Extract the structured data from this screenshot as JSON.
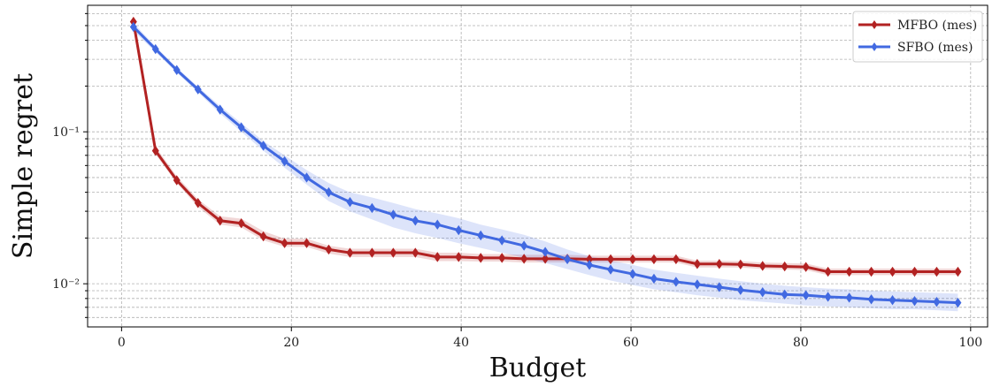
{
  "chart_data": {
    "type": "line",
    "title": "",
    "xlabel": "Budget",
    "ylabel": "Simple regret",
    "xlim": [
      -4,
      102
    ],
    "ylim": [
      0.0052,
      0.68
    ],
    "yscale": "log",
    "grid": true,
    "legend_position": "top-right",
    "x_ticks": [
      0,
      20,
      40,
      60,
      80,
      100
    ],
    "x_tick_labels": [
      "0",
      "20",
      "40",
      "60",
      "80",
      "100"
    ],
    "y_major_ticks": [
      0.1,
      0.01
    ],
    "y_major_tick_labels": [
      "10⁻¹",
      "10⁻²"
    ],
    "x": [
      1.4,
      4.0,
      6.5,
      9.0,
      11.6,
      14.1,
      16.7,
      19.2,
      21.8,
      24.4,
      26.9,
      29.5,
      32.0,
      34.6,
      37.2,
      39.7,
      42.3,
      44.8,
      47.4,
      49.9,
      52.5,
      55.1,
      57.6,
      60.2,
      62.7,
      65.3,
      67.8,
      70.4,
      72.9,
      75.5,
      78.1,
      80.6,
      83.2,
      85.7,
      88.3,
      90.8,
      93.4,
      96.0,
      98.5
    ],
    "series": [
      {
        "name": "MFBO (mes)",
        "color": "#b22222",
        "values": [
          0.53,
          0.075,
          0.048,
          0.034,
          0.026,
          0.025,
          0.0205,
          0.0185,
          0.0185,
          0.0168,
          0.016,
          0.016,
          0.016,
          0.016,
          0.015,
          0.015,
          0.0148,
          0.0148,
          0.0146,
          0.0146,
          0.0146,
          0.0145,
          0.0145,
          0.0145,
          0.0145,
          0.0145,
          0.0135,
          0.0135,
          0.0134,
          0.0131,
          0.013,
          0.0129,
          0.012,
          0.012,
          0.012,
          0.012,
          0.012,
          0.012,
          0.012
        ],
        "band_lower": [
          0.5,
          0.071,
          0.046,
          0.032,
          0.0245,
          0.0235,
          0.0193,
          0.0175,
          0.0175,
          0.0158,
          0.015,
          0.015,
          0.015,
          0.015,
          0.0141,
          0.0141,
          0.014,
          0.014,
          0.0138,
          0.0138,
          0.0138,
          0.0138,
          0.0138,
          0.0138,
          0.0138,
          0.0138,
          0.0128,
          0.0128,
          0.0128,
          0.0125,
          0.0124,
          0.0123,
          0.0114,
          0.0114,
          0.0114,
          0.0114,
          0.0114,
          0.0114,
          0.0114
        ],
        "band_upper": [
          0.56,
          0.08,
          0.051,
          0.036,
          0.0278,
          0.0268,
          0.0222,
          0.0198,
          0.0198,
          0.0178,
          0.017,
          0.017,
          0.017,
          0.017,
          0.016,
          0.016,
          0.0157,
          0.0157,
          0.0155,
          0.0155,
          0.0155,
          0.0153,
          0.0153,
          0.0153,
          0.0153,
          0.0153,
          0.0142,
          0.0142,
          0.0141,
          0.0138,
          0.0137,
          0.0136,
          0.0126,
          0.0126,
          0.0126,
          0.0126,
          0.0126,
          0.0126,
          0.0126
        ]
      },
      {
        "name": "SFBO (mes)",
        "color": "#4169e1",
        "values": [
          0.49,
          0.35,
          0.255,
          0.19,
          0.14,
          0.107,
          0.081,
          0.064,
          0.05,
          0.04,
          0.0345,
          0.0315,
          0.0285,
          0.026,
          0.0245,
          0.0225,
          0.0208,
          0.0193,
          0.0178,
          0.0162,
          0.0145,
          0.0133,
          0.0124,
          0.0116,
          0.0108,
          0.0103,
          0.0099,
          0.0095,
          0.0091,
          0.0088,
          0.0085,
          0.0084,
          0.0082,
          0.0081,
          0.0079,
          0.0078,
          0.0077,
          0.0076,
          0.0075
        ],
        "band_lower": [
          0.46,
          0.335,
          0.245,
          0.182,
          0.132,
          0.1,
          0.075,
          0.058,
          0.045,
          0.035,
          0.03,
          0.0265,
          0.0235,
          0.0215,
          0.02,
          0.0185,
          0.0172,
          0.016,
          0.0148,
          0.0137,
          0.0125,
          0.0114,
          0.0105,
          0.0098,
          0.0092,
          0.0088,
          0.0084,
          0.0081,
          0.0078,
          0.0076,
          0.0074,
          0.0072,
          0.0071,
          0.007,
          0.0069,
          0.0068,
          0.0068,
          0.0067,
          0.0066
        ],
        "band_upper": [
          0.52,
          0.365,
          0.265,
          0.198,
          0.148,
          0.114,
          0.087,
          0.07,
          0.056,
          0.046,
          0.04,
          0.037,
          0.034,
          0.031,
          0.029,
          0.027,
          0.0245,
          0.0228,
          0.021,
          0.019,
          0.0168,
          0.0152,
          0.0142,
          0.0133,
          0.0124,
          0.0118,
          0.0113,
          0.0108,
          0.0104,
          0.01,
          0.0097,
          0.0095,
          0.0093,
          0.0092,
          0.009,
          0.0089,
          0.0088,
          0.0087,
          0.0086
        ]
      }
    ]
  }
}
